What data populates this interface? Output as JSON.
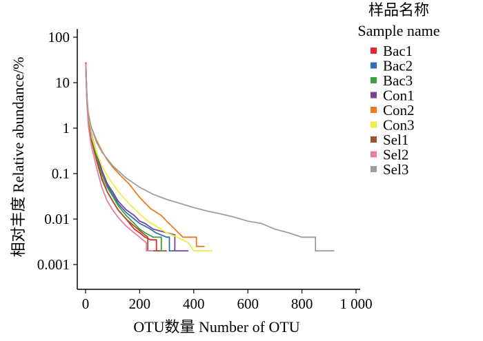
{
  "chart_data": {
    "type": "line",
    "title": "",
    "xlabel": "OTU数量  Number of OTU",
    "ylabel": "相对丰度  Relative abundance/%",
    "xlim": [
      0,
      1000
    ],
    "ylim": [
      0.0005,
      100
    ],
    "y_scale": "log",
    "x_ticks": [
      0,
      200,
      400,
      600,
      800,
      1000
    ],
    "x_tick_labels": [
      "0",
      "200",
      "400",
      "600",
      "800",
      "1 000"
    ],
    "y_ticks": [
      0.001,
      0.01,
      0.1,
      1,
      10,
      100
    ],
    "y_tick_labels": [
      "0.001",
      "0.01",
      "0.1",
      "1",
      "10",
      "100"
    ],
    "grid": false,
    "legend": {
      "title_cn": "样品名称",
      "title_en": "Sample name",
      "position": "right"
    },
    "series": [
      {
        "name": "Bac1",
        "color": "#e3262c",
        "x": [
          1,
          5,
          10,
          20,
          40,
          60,
          80,
          100,
          120,
          150,
          180,
          200,
          220,
          240,
          255,
          262,
          262,
          300
        ],
        "y": [
          28,
          4,
          1.5,
          0.7,
          0.22,
          0.08,
          0.04,
          0.025,
          0.016,
          0.01,
          0.006,
          0.005,
          0.004,
          0.0035,
          0.0035,
          0.0035,
          0.002,
          0.002
        ]
      },
      {
        "name": "Bac2",
        "color": "#2e6fb5",
        "x": [
          1,
          5,
          10,
          20,
          40,
          60,
          80,
          100,
          120,
          150,
          180,
          200,
          220,
          240,
          260,
          300,
          310,
          310,
          330
        ],
        "y": [
          25,
          4,
          1.6,
          0.8,
          0.28,
          0.11,
          0.055,
          0.035,
          0.022,
          0.014,
          0.01,
          0.008,
          0.007,
          0.006,
          0.005,
          0.004,
          0.004,
          0.002,
          0.002
        ]
      },
      {
        "name": "Bac3",
        "color": "#3aa13b",
        "x": [
          1,
          5,
          10,
          20,
          40,
          60,
          80,
          100,
          120,
          150,
          180,
          200,
          220,
          250,
          280,
          280,
          290
        ],
        "y": [
          20,
          4,
          1.5,
          0.75,
          0.25,
          0.1,
          0.05,
          0.032,
          0.02,
          0.012,
          0.008,
          0.006,
          0.005,
          0.004,
          0.004,
          0.002,
          0.002
        ]
      },
      {
        "name": "Con1",
        "color": "#7b3e9b",
        "x": [
          1,
          5,
          10,
          20,
          40,
          60,
          80,
          100,
          120,
          150,
          180,
          200,
          220,
          250,
          300,
          330,
          330,
          380
        ],
        "y": [
          22,
          4,
          1.6,
          0.8,
          0.3,
          0.12,
          0.06,
          0.04,
          0.025,
          0.016,
          0.012,
          0.009,
          0.008,
          0.006,
          0.005,
          0.0045,
          0.002,
          0.002
        ]
      },
      {
        "name": "Con2",
        "color": "#ef7a1d",
        "x": [
          1,
          5,
          10,
          20,
          40,
          60,
          80,
          100,
          130,
          160,
          200,
          240,
          280,
          300,
          330,
          360,
          400,
          410,
          410,
          440
        ],
        "y": [
          26,
          5,
          2.2,
          1.1,
          0.55,
          0.32,
          0.2,
          0.14,
          0.09,
          0.06,
          0.03,
          0.017,
          0.012,
          0.009,
          0.006,
          0.004,
          0.004,
          0.004,
          0.0025,
          0.0025
        ]
      },
      {
        "name": "Con3",
        "color": "#eeee44",
        "x": [
          1,
          5,
          10,
          20,
          40,
          60,
          80,
          100,
          130,
          160,
          200,
          230,
          260,
          300,
          340,
          380,
          400,
          440,
          470
        ],
        "y": [
          18,
          4,
          1.6,
          0.75,
          0.3,
          0.15,
          0.09,
          0.06,
          0.035,
          0.022,
          0.013,
          0.009,
          0.007,
          0.005,
          0.004,
          0.003,
          0.002,
          0.002,
          0.002
        ]
      },
      {
        "name": "Sel1",
        "color": "#a0522d",
        "x": [
          1,
          5,
          10,
          20,
          40,
          60,
          80,
          100,
          120,
          150,
          180,
          210,
          230,
          230,
          270
        ],
        "y": [
          20,
          4,
          1.4,
          0.6,
          0.2,
          0.075,
          0.04,
          0.025,
          0.016,
          0.01,
          0.007,
          0.005,
          0.004,
          0.002,
          0.002
        ]
      },
      {
        "name": "Sel2",
        "color": "#e67e9f",
        "x": [
          1,
          5,
          10,
          20,
          40,
          60,
          80,
          100,
          120,
          150,
          180,
          200,
          225,
          225,
          250
        ],
        "y": [
          26,
          3.5,
          1.2,
          0.45,
          0.14,
          0.05,
          0.025,
          0.016,
          0.011,
          0.007,
          0.005,
          0.004,
          0.003,
          0.002,
          0.002
        ]
      },
      {
        "name": "Sel3",
        "color": "#9e9e9e",
        "x": [
          1,
          5,
          10,
          20,
          40,
          60,
          100,
          150,
          200,
          250,
          300,
          350,
          400,
          450,
          500,
          550,
          600,
          650,
          700,
          750,
          800,
          850,
          850,
          920
        ],
        "y": [
          20,
          4,
          2,
          1.1,
          0.5,
          0.3,
          0.15,
          0.08,
          0.05,
          0.035,
          0.027,
          0.022,
          0.018,
          0.015,
          0.013,
          0.011,
          0.009,
          0.008,
          0.006,
          0.005,
          0.004,
          0.004,
          0.002,
          0.002
        ]
      }
    ]
  }
}
